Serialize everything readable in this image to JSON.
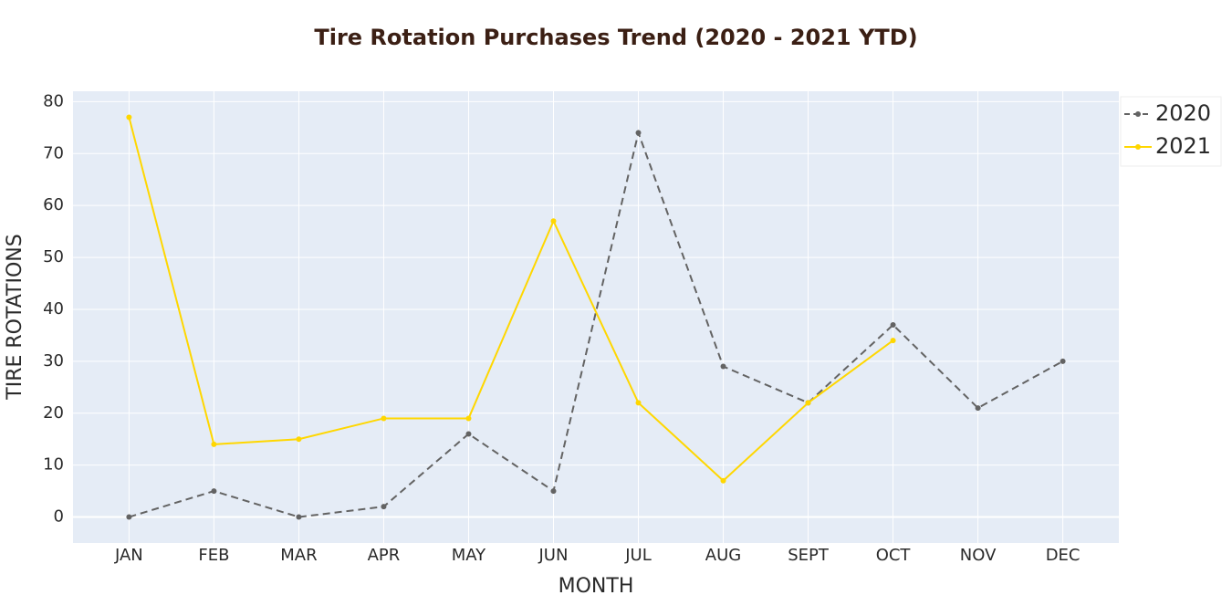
{
  "chart_data": {
    "type": "line",
    "title": "Tire Rotation Purchases Trend (2020 - 2021 YTD)",
    "x_label": "MONTH",
    "y_label": "TIRE ROTATIONS",
    "categories": [
      "JAN",
      "FEB",
      "MAR",
      "APR",
      "MAY",
      "JUN",
      "JUL",
      "AUG",
      "SEPT",
      "OCT",
      "NOV",
      "DEC"
    ],
    "series": [
      {
        "name": "2020",
        "color": "#636363",
        "dash": true,
        "values": [
          0,
          5,
          0,
          2,
          16,
          5,
          74,
          29,
          22,
          37,
          21,
          30
        ]
      },
      {
        "name": "2021",
        "color": "#ffd700",
        "dash": false,
        "values": [
          77,
          14,
          15,
          19,
          19,
          57,
          22,
          7,
          22,
          34,
          null,
          null
        ]
      }
    ],
    "ylim": [
      -5,
      82
    ],
    "yticks": [
      0,
      10,
      20,
      30,
      40,
      50,
      60,
      70,
      80
    ],
    "grid": true,
    "legend": "top-right"
  }
}
